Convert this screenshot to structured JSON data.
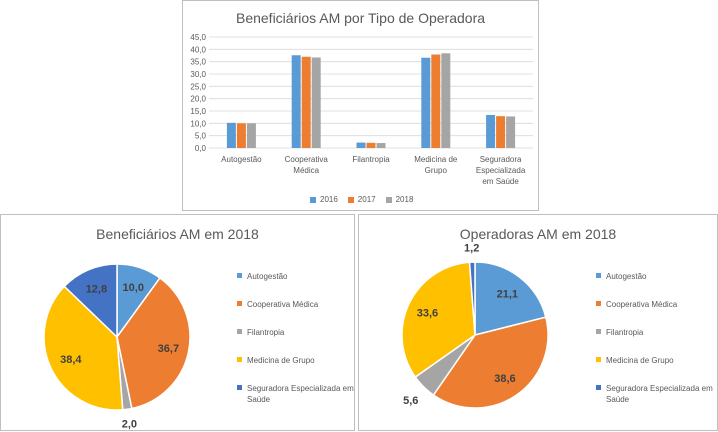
{
  "chart_data": [
    {
      "type": "bar",
      "title": "Beneficiários AM por Tipo de Operadora",
      "categories": [
        "Autogestão",
        "Cooperativa Médica",
        "Filantropia",
        "Medicina de Grupo",
        "Seguradora Especializada em Saúde"
      ],
      "series": [
        {
          "name": "2016",
          "color": "#5B9BD5",
          "values": [
            10.2,
            37.6,
            2.2,
            36.6,
            13.4
          ]
        },
        {
          "name": "2017",
          "color": "#ED7D31",
          "values": [
            10.0,
            37.0,
            2.1,
            37.9,
            12.9
          ]
        },
        {
          "name": "2018",
          "color": "#A5A5A5",
          "values": [
            10.0,
            36.7,
            2.0,
            38.4,
            12.8
          ]
        }
      ],
      "ylim": [
        0,
        45
      ],
      "yticks": [
        "0,0",
        "5,0",
        "10,0",
        "15,0",
        "20,0",
        "25,0",
        "30,0",
        "35,0",
        "40,0",
        "45,0"
      ],
      "grid": true,
      "legend": "bottom"
    },
    {
      "type": "pie",
      "title": "Beneficiários AM em 2018",
      "labels": [
        "Autogestão",
        "Cooperativa Médica",
        "Filantropia",
        "Medicina de Grupo",
        "Seguradora Especializada em Saúde"
      ],
      "values": [
        10.0,
        36.7,
        2.0,
        38.4,
        12.8
      ],
      "value_labels": [
        "10,0",
        "36,7",
        "2,0",
        "38,4",
        "12,8"
      ],
      "colors": [
        "#5B9BD5",
        "#ED7D31",
        "#A5A5A5",
        "#FFC000",
        "#4472C4"
      ],
      "legend": "right"
    },
    {
      "type": "pie",
      "title": "Operadoras AM em 2018",
      "labels": [
        "Autogestão",
        "Cooperativa Médica",
        "Filantropia",
        "Medicina de Grupo",
        "Seguradora Especializada em Saúde"
      ],
      "values": [
        21.1,
        38.6,
        5.6,
        33.6,
        1.2
      ],
      "value_labels": [
        "21,1",
        "38,6",
        "5,6",
        "33,6",
        "1,2"
      ],
      "colors": [
        "#5B9BD5",
        "#ED7D31",
        "#A5A5A5",
        "#FFC000",
        "#4472C4"
      ],
      "legend": "right"
    }
  ]
}
